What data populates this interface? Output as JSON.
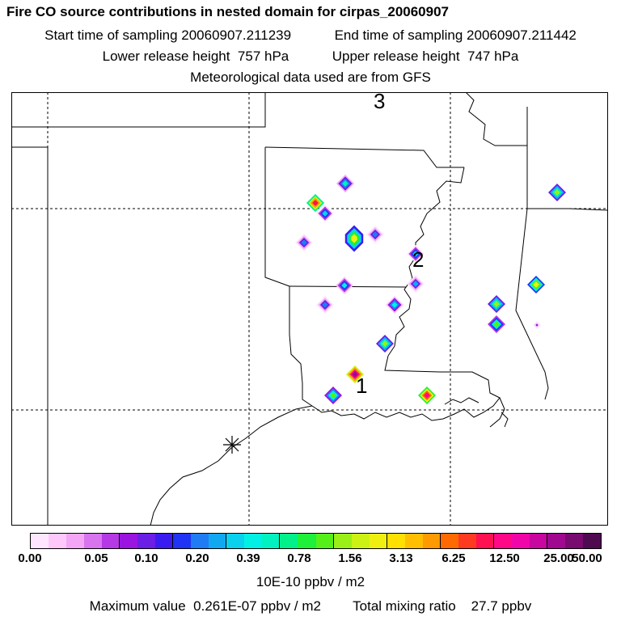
{
  "title": "Fire CO source contributions in nested domain for cirpas_20060907",
  "sampling": {
    "start_label": "Start time of sampling",
    "start_value": "20060907.211239",
    "end_label": "End time of sampling",
    "end_value": "20060907.211442"
  },
  "release": {
    "lower_label": "Lower release height",
    "lower_value": "757 hPa",
    "upper_label": "Upper release height",
    "upper_value": "747 hPa"
  },
  "met_note": "Meteorological data used are from GFS",
  "map_labels": [
    {
      "text": "1"
    },
    {
      "text": "2"
    },
    {
      "text": "3"
    }
  ],
  "colorbar": {
    "colors": [
      "#ffe6ff",
      "#ffc8fb",
      "#f3a6f5",
      "#d874ee",
      "#b53ae6",
      "#9a15e0",
      "#6a1ee6",
      "#3b1cf0",
      "#1f34f5",
      "#1f7cf5",
      "#11a8f2",
      "#0ad2ee",
      "#00f0e6",
      "#00f2c0",
      "#00f08a",
      "#1ff03a",
      "#55f01a",
      "#9af016",
      "#ccf214",
      "#f0f010",
      "#ffe000",
      "#ffbe00",
      "#ff9a00",
      "#ff6a00",
      "#ff3a20",
      "#ff1050",
      "#ff0888",
      "#f006a8",
      "#c806a0",
      "#a00890",
      "#780a70",
      "#500a50"
    ],
    "tick_labels": [
      "0.00",
      "0.05",
      "0.10",
      "0.20",
      "0.39",
      "0.78",
      "1.56",
      "3.13",
      "6.25",
      "12.50",
      "25.00",
      "50.00"
    ],
    "units": "10E-10 ppbv / m2"
  },
  "footer": {
    "max_label": "Maximum value",
    "max_value": "0.261E-07 ppbv / m2",
    "total_label": "Total mixing ratio",
    "total_value": "27.7 ppbv"
  },
  "fires": [
    {
      "level": 0.42,
      "size": "small"
    },
    {
      "level": 0.75,
      "size": "small"
    },
    {
      "level": 0.37,
      "size": "small"
    },
    {
      "level": 0.3,
      "size": "small"
    },
    {
      "level": 0.3,
      "size": "small"
    },
    {
      "level": 0.6,
      "size": "large"
    },
    {
      "level": 0.38,
      "size": "small"
    },
    {
      "level": 0.3,
      "size": "small"
    },
    {
      "level": 0.4,
      "size": "small"
    },
    {
      "level": 0.32,
      "size": "small"
    },
    {
      "level": 0.55,
      "size": "small"
    },
    {
      "level": 0.37,
      "size": "small"
    },
    {
      "level": 0.5,
      "size": "small"
    },
    {
      "level": 0.55,
      "size": "small"
    },
    {
      "level": 0.62,
      "size": "small"
    },
    {
      "level": 0.55,
      "size": "small"
    },
    {
      "level": 0.15,
      "size": "tiny"
    },
    {
      "level": 0.52,
      "size": "small"
    },
    {
      "level": 0.95,
      "size": "small"
    },
    {
      "level": 0.85,
      "size": "small"
    },
    {
      "level": 0.82,
      "size": "small"
    }
  ]
}
